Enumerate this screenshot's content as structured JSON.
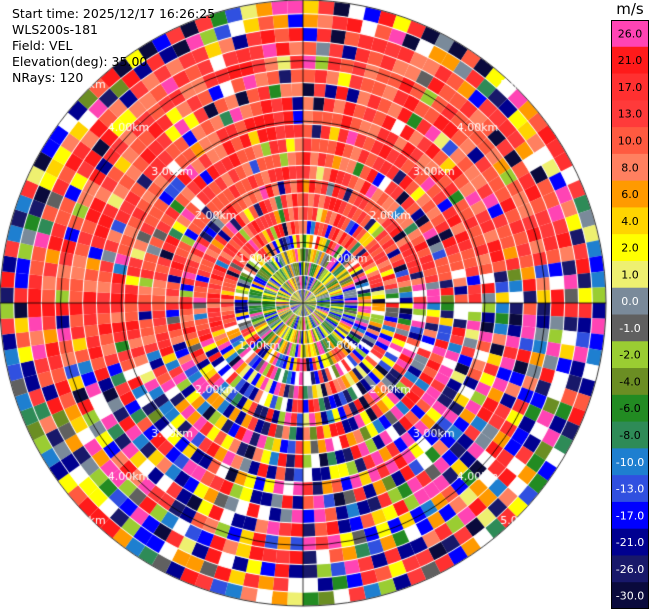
{
  "header": {
    "lines": [
      "Start time: 2025/12/17 16:26:25",
      "WLS200s-181",
      "Field: VEL",
      "Elevation(deg): 35.00",
      "NRays: 120"
    ]
  },
  "chart_data": {
    "type": "heatmap",
    "projection": "polar-ppi",
    "field": "VEL",
    "nrays": 120,
    "elevation_deg": 35.0,
    "range_labels": [
      "1.00km",
      "2.00km",
      "3.00km",
      "4.00km",
      "5.00km"
    ],
    "range_rings_km": [
      1,
      2,
      3,
      4,
      5
    ],
    "colorbar": {
      "unit": "m/s",
      "ticks": [
        "26.0",
        "21.0",
        "17.0",
        "13.0",
        "10.0",
        "8.0",
        "6.0",
        "4.0",
        "2.0",
        "1.0",
        "0.0",
        "-1.0",
        "-2.0",
        "-4.0",
        "-6.0",
        "-8.0",
        "-10.0",
        "-13.0",
        "-17.0",
        "-21.0",
        "-26.0",
        "-30.0"
      ],
      "colors": [
        "#ff44b4",
        "#ff1a1a",
        "#ff3030",
        "#ff3a3a",
        "#ff5a40",
        "#ff8060",
        "#ff9a00",
        "#ffd400",
        "#ffff00",
        "#eef070",
        "#7a8a9a",
        "#606060",
        "#9acd32",
        "#6b8e23",
        "#228b22",
        "#2e8b57",
        "#1e7fd0",
        "#3050e0",
        "#0000ff",
        "#000090",
        "#18186a",
        "#0a0a3c"
      ]
    }
  }
}
